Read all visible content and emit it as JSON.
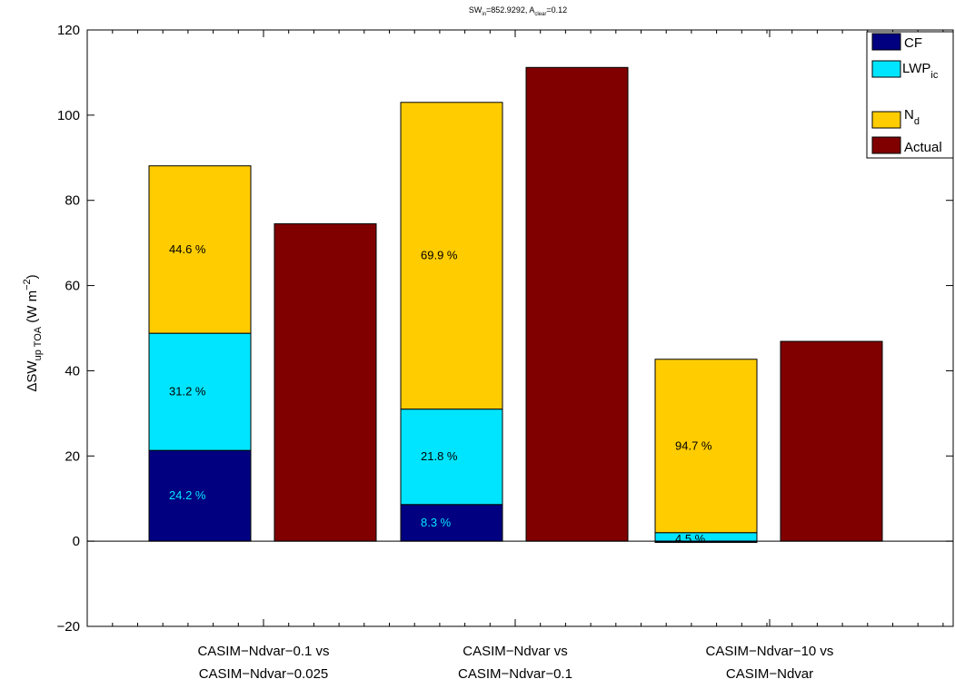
{
  "chart_data": {
    "type": "bar",
    "stacked_and_grouped": true,
    "title": {
      "main": "SW",
      "sub_in": "in",
      "middle": "=852.9292, A",
      "sub_clear": "clear",
      "end": "=0.12"
    },
    "ylabel": {
      "delta": "Δ",
      "main": "SW",
      "sub": "up TOA",
      "unit_open": " (W m",
      "unit_sup": "−2",
      "unit_close": ")"
    },
    "ylim": [
      -20,
      120
    ],
    "yticks": [
      {
        "value": -20,
        "label": "−20"
      },
      {
        "value": 0,
        "label": "0"
      },
      {
        "value": 20,
        "label": "20"
      },
      {
        "value": 40,
        "label": "40"
      },
      {
        "value": 60,
        "label": "60"
      },
      {
        "value": 80,
        "label": "80"
      },
      {
        "value": 100,
        "label": "100"
      },
      {
        "value": 120,
        "label": "120"
      }
    ],
    "categories": [
      {
        "line1": "CASIM−Ndvar−0.1 vs",
        "line2": "CASIM−Ndvar−0.025"
      },
      {
        "line1": "CASIM−Ndvar vs",
        "line2": "CASIM−Ndvar−0.1"
      },
      {
        "line1": "CASIM−Ndvar−10 vs",
        "line2": "CASIM−Ndvar"
      }
    ],
    "series": [
      {
        "key": "cf",
        "name": "CF",
        "color": "#000080"
      },
      {
        "key": "lwp",
        "name": "LWP",
        "name_sub": "ic",
        "color": "#00e5ff"
      },
      {
        "key": "nd",
        "name": "N",
        "name_sub": "d",
        "color": "#ffcc00"
      },
      {
        "key": "actual",
        "name": "Actual",
        "color": "#800000"
      }
    ],
    "stacks": [
      {
        "cf": 21.3,
        "lwp": 27.5,
        "nd": 39.3,
        "labels": [
          "24.2 %",
          "31.2 %",
          "44.6 %"
        ]
      },
      {
        "cf": 8.6,
        "lwp": 22.4,
        "nd": 72.0,
        "labels": [
          "8.3 %",
          "21.8 %",
          "69.9 %"
        ]
      },
      {
        "cf": -0.3,
        "lwp": 2.0,
        "nd": 40.7,
        "labels": [
          "",
          "4.5 %",
          "94.7 %"
        ]
      }
    ],
    "actual": [
      74.5,
      111.2,
      46.9
    ],
    "label_colors": {
      "cf": "#00e5ff",
      "other": "#000000"
    },
    "grid": false,
    "legend": "top-right"
  }
}
